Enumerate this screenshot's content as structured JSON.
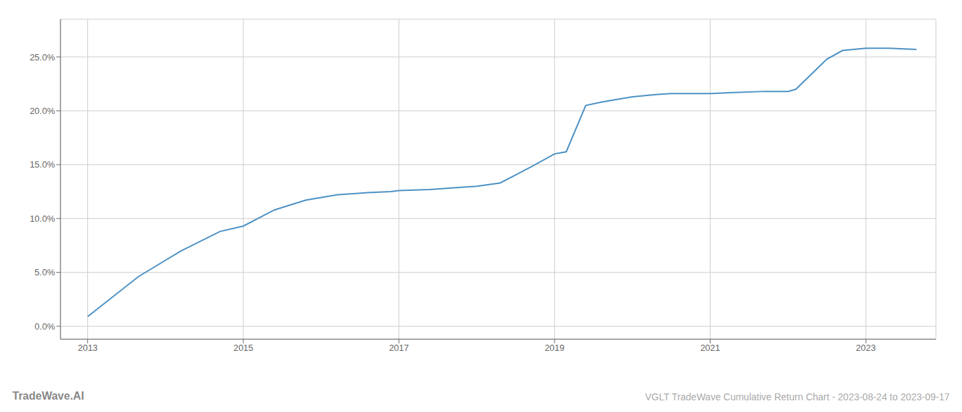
{
  "chart_data": {
    "type": "line",
    "title": "VGLT TradeWave Cumulative Return Chart - 2023-08-24 to 2023-09-17",
    "annotations": [
      "TradeWave.AI"
    ],
    "x": [
      2013.0,
      2013.65,
      2014.2,
      2014.7,
      2015.0,
      2015.4,
      2015.8,
      2016.2,
      2016.6,
      2016.9,
      2017.0,
      2017.4,
      2017.8,
      2018.0,
      2018.3,
      2018.7,
      2019.0,
      2019.15,
      2019.4,
      2019.6,
      2019.75,
      2020.0,
      2020.3,
      2020.5,
      2020.8,
      2021.0,
      2021.3,
      2021.7,
      2022.0,
      2022.1,
      2022.5,
      2022.7,
      2023.0,
      2023.3,
      2023.65
    ],
    "values": [
      0.009,
      0.046,
      0.07,
      0.088,
      0.093,
      0.108,
      0.117,
      0.122,
      0.124,
      0.125,
      0.126,
      0.127,
      0.129,
      0.13,
      0.133,
      0.148,
      0.16,
      0.162,
      0.205,
      0.208,
      0.21,
      0.213,
      0.215,
      0.216,
      0.216,
      0.216,
      0.217,
      0.218,
      0.218,
      0.22,
      0.248,
      0.256,
      0.258,
      0.258,
      0.257
    ],
    "color": "#4a90c4",
    "xlim": [
      2012.65,
      2023.9
    ],
    "ylim": [
      -0.012,
      0.285
    ],
    "xticks": [
      2013,
      2015,
      2017,
      2019,
      2021,
      2023
    ],
    "yticks": [
      {
        "value": 0.0,
        "label": "0.0%"
      },
      {
        "value": 0.05,
        "label": "5.0%"
      },
      {
        "value": 0.1,
        "label": "10.0%"
      },
      {
        "value": 0.15,
        "label": "15.0%"
      },
      {
        "value": 0.2,
        "label": "20.0%"
      },
      {
        "value": 0.25,
        "label": "25.0%"
      }
    ],
    "grid": true
  }
}
